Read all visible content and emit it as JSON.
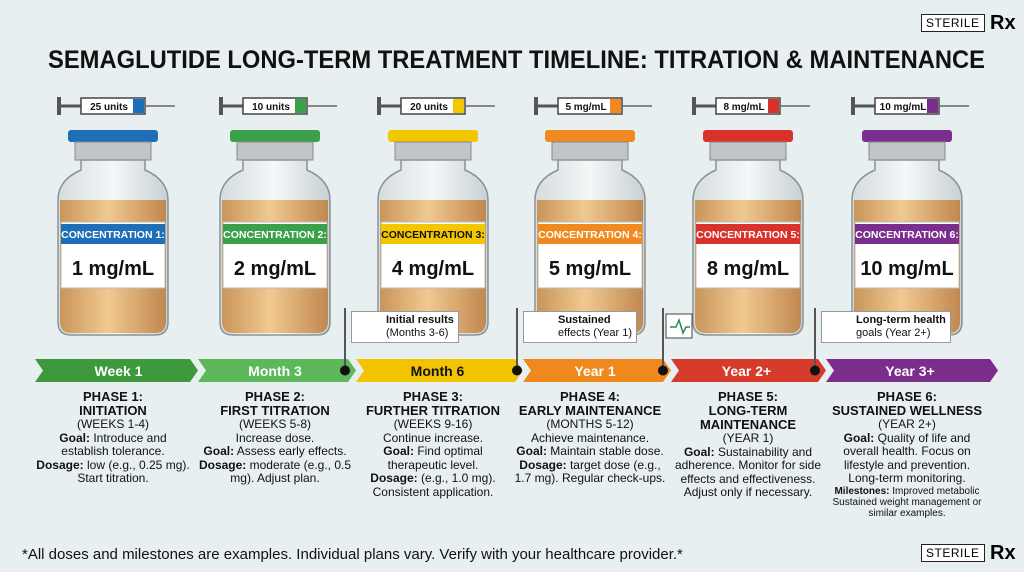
{
  "header": {
    "title": "SEMAGLUTIDE LONG-TERM TREATMENT TIMELINE: TITRATION & MAINTENANCE",
    "badge": "STERILE",
    "rx": "Rx"
  },
  "phases": [
    {
      "syringe": "25 units",
      "concentration": "CONCENTRATION 1:",
      "dose": "1 mg/mL",
      "timeline": "Week 1",
      "phase": "PHASE 1:",
      "name": "INITIATION",
      "period": "(WEEKS 1-4)",
      "details": [
        {
          "label": "Goal:",
          "text": "Introduce and establish tolerance."
        },
        {
          "label": "Dosage:",
          "text": "low (e.g., 0.25 mg). Start titration."
        }
      ]
    },
    {
      "syringe": "10 units",
      "concentration": "CONCENTRATION 2:",
      "dose": "2 mg/mL",
      "timeline": "Month 3",
      "phase": "PHASE 2:",
      "name": "FIRST TITRATION",
      "period": "(WEEKS 5-8)",
      "details": [
        {
          "text": "Increase dose."
        },
        {
          "label": "Goal:",
          "text": "Assess early effects."
        },
        {
          "label": "Dosage:",
          "text": "moderate (e.g., 0.5 mg). Adjust plan."
        }
      ]
    },
    {
      "syringe": "20 units",
      "concentration": "CONCENTRATION 3:",
      "dose": "4 mg/mL",
      "timeline": "Month 6",
      "phase": "PHASE 3:",
      "name": "FURTHER TITRATION",
      "period": "(WEEKS 9-16)",
      "details": [
        {
          "text": "Continue increase."
        },
        {
          "label": "Goal:",
          "text": "Find optimal therapeutic level."
        },
        {
          "label": "Dosage:",
          "text": "(e.g., 1.0 mg). Consistent application."
        }
      ]
    },
    {
      "syringe": "5 mg/mL",
      "concentration": "CONCENTRATION 4:",
      "dose": "5 mg/mL",
      "timeline": "Year 1",
      "phase": "PHASE 4:",
      "name": "EARLY MAINTENANCE",
      "period": "(MONTHS 5-12)",
      "details": [
        {
          "text": "Achieve maintenance."
        },
        {
          "label": "Goal:",
          "text": "Maintain stable dose."
        },
        {
          "label": "Dosage:",
          "text": "target dose (e.g., 1.7 mg). Regular check-ups."
        }
      ]
    },
    {
      "syringe": "8 mg/mL",
      "concentration": "CONCENTRATION 5:",
      "dose": "8 mg/mL",
      "timeline": "Year 2+",
      "phase": "PHASE 5:",
      "name": "LONG-TERM MAINTENANCE",
      "period": "(YEAR 1)",
      "details": [
        {
          "label": "Goal:",
          "text": "Sustainability and adherence. Monitor for side effects and effectiveness. Adjust only if necessary."
        }
      ]
    },
    {
      "syringe": "10 mg/mL",
      "concentration": "CONCENTRATION 6:",
      "dose": "10 mg/mL",
      "timeline": "Year 3+",
      "phase": "PHASE 6:",
      "name": "SUSTAINED WELLNESS",
      "period": "(YEAR 2+)",
      "details": [
        {
          "label": "Goal:",
          "text": "Quality of life and overall health. Focus on lifestyle and prevention. Long-term monitoring."
        },
        {
          "label": "Milestones:",
          "text": "Improved metabolic Sustained weight management or similar examples.",
          "small": true
        }
      ]
    }
  ],
  "milestones": [
    {
      "title": "Initial results",
      "detail": "(Months 3-6)"
    },
    {
      "title": "Sustained",
      "detail": "effects (Year 1)"
    },
    {
      "title": "Long-term health",
      "detail": "goals (Year 2+)"
    }
  ],
  "footnote": "*All doses and milestones are examples. Individual plans vary. Verify with your healthcare provider.*"
}
